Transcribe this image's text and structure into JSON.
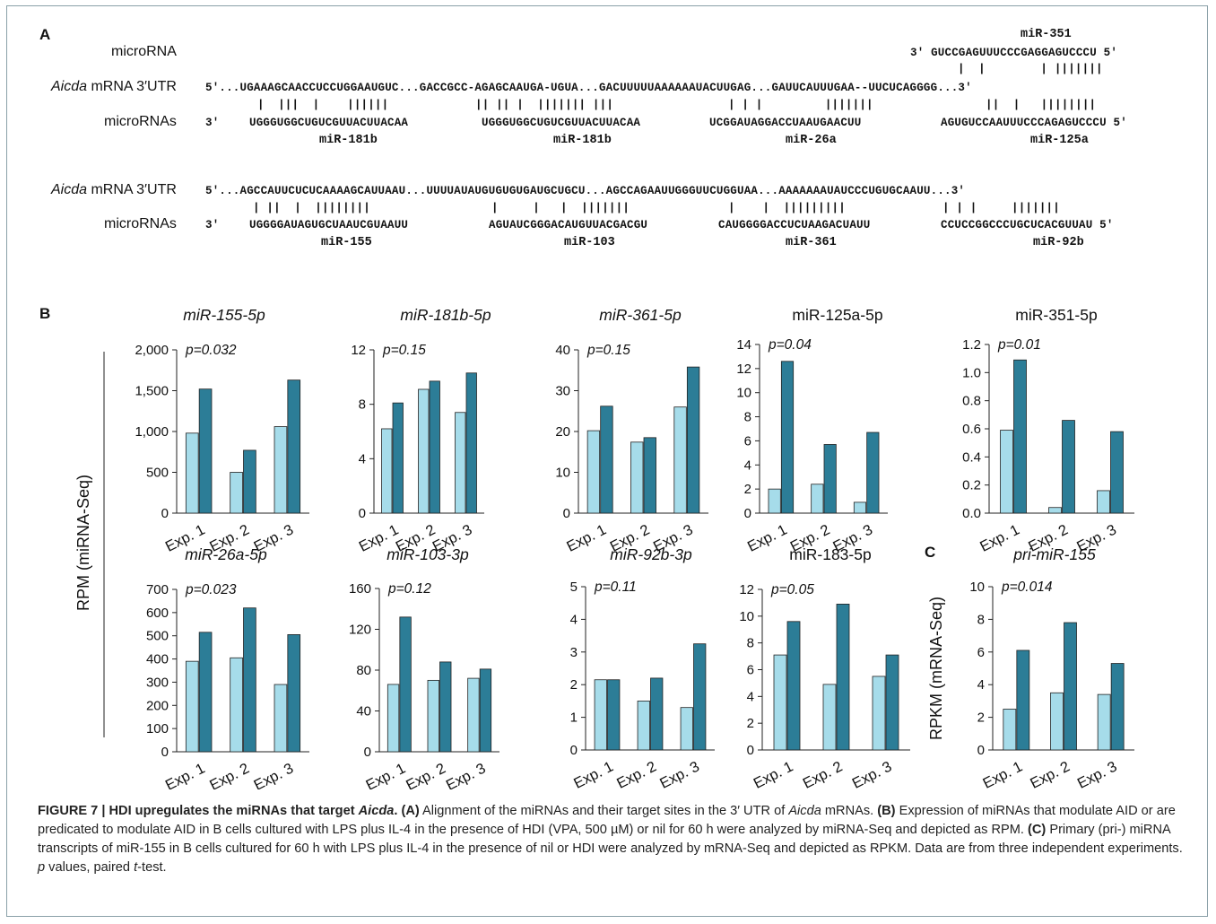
{
  "panelA": {
    "letter": "A",
    "label_microRNA": "microRNA",
    "label_target_gene": "Aicda",
    "label_target_rest": " mRNA 3′UTR",
    "label_microRNAs": "microRNAs",
    "mir351": {
      "name": "miR-351",
      "seq": "3′ GUCCGAGUUUCCCGAGGAGUCCCU 5′",
      "pairs": "|  |        | |||||||"
    },
    "row1": {
      "mrna": "5′...UGAAAGCAACCUCCUGGAAUGUC...GACCGCC-AGAGCAAUGA-UGUA...GACUUUUUAAAAAAUACUUGAG...GAUUCAUUUGAA--UUCUCAGGGG...3′",
      "pairs": [
        {
          "x": 287,
          "text": "|  |||  |    ||||||"
        },
        {
          "x": 530,
          "text": "|| || |  ||||||| |||"
        },
        {
          "x": 812,
          "text": "| | |         |||||||"
        },
        {
          "x": 1099,
          "text": "||  |   ||||||||"
        }
      ],
      "seqs": [
        {
          "x": 229,
          "text": "3′"
        },
        {
          "x": 278,
          "text": "UGGGUGGCUGUCGUUACUUACAA"
        },
        {
          "x": 537,
          "text": "UGGGUGGCUGUCGUUACUUACAA"
        },
        {
          "x": 791,
          "text": "UCGGAUAGGACCUAAUGAACUU"
        },
        {
          "x": 1049,
          "text": "AGUGUCCAAUUUCCCAGAGUCCCU 5′"
        }
      ],
      "names": [
        {
          "x": 356,
          "text": "miR-181b"
        },
        {
          "x": 617,
          "text": "miR-181b"
        },
        {
          "x": 876,
          "text": "miR-26a"
        },
        {
          "x": 1149,
          "text": "miR-125a"
        }
      ]
    },
    "row2": {
      "mrna": "5′...AGCCAUUCUCUCAAAAGCAUUAAU...UUUUAUAUGUGUGUGAUGCUGCU...AGCCAGAAUUGGGUUCUGGUAA...AAAAAAAUAUCCCUGUGCAAUU...3′",
      "pairs": [
        {
          "x": 282,
          "text": "| ||  |  ||||||||"
        },
        {
          "x": 548,
          "text": "|     |   |  |||||||"
        },
        {
          "x": 812,
          "text": "|    |  |||||||||"
        },
        {
          "x": 1051,
          "text": "| | |     |||||||"
        }
      ],
      "seqs": [
        {
          "x": 229,
          "text": "3′"
        },
        {
          "x": 278,
          "text": "UGGGGAUAGUGCUAAUCGUAAUU"
        },
        {
          "x": 545,
          "text": "AGUAUCGGGACAUGUUACGACGU"
        },
        {
          "x": 801,
          "text": "CAUGGGGACCUCUAAGACUAUU"
        },
        {
          "x": 1049,
          "text": "CCUCCGGCCCUGCUCACGUUAU 5′"
        }
      ],
      "names": [
        {
          "x": 358,
          "text": "miR-155"
        },
        {
          "x": 629,
          "text": "miR-103"
        },
        {
          "x": 876,
          "text": "miR-361"
        },
        {
          "x": 1152,
          "text": "miR-92b"
        }
      ]
    }
  },
  "panelB": {
    "letter": "B",
    "ylabel": "RPM (miRNA-Seq)"
  },
  "panelC": {
    "letter": "C",
    "ylabel": "RPKM (mRNA-Seq)"
  },
  "colors": {
    "nil": "#a6dcea",
    "hdi": "#2c7d97",
    "axis": "#222222"
  },
  "chart_data": [
    {
      "type": "bar",
      "title": "miR-155-5p",
      "title_italic": true,
      "pvalue": "p=0.032",
      "categories": [
        "Exp. 1",
        "Exp. 2",
        "Exp. 3"
      ],
      "ylim": [
        0,
        2000
      ],
      "yticks": [
        0,
        500,
        1000,
        1500,
        2000
      ],
      "ytick_labels": [
        "0",
        "500",
        "1,000",
        "1,500",
        "2,000"
      ],
      "series": [
        {
          "values": [
            980,
            500,
            1060
          ]
        },
        {
          "values": [
            1520,
            770,
            1630
          ]
        }
      ]
    },
    {
      "type": "bar",
      "title": "miR-181b-5p",
      "title_italic": true,
      "pvalue": "p=0.15",
      "categories": [
        "Exp. 1",
        "Exp. 2",
        "Exp. 3"
      ],
      "ylim": [
        0,
        12
      ],
      "yticks": [
        0,
        4,
        8,
        12
      ],
      "ytick_labels": [
        "0",
        "4",
        "8",
        "12"
      ],
      "series": [
        {
          "values": [
            6.2,
            9.1,
            7.4
          ]
        },
        {
          "values": [
            8.1,
            9.7,
            10.3
          ]
        }
      ]
    },
    {
      "type": "bar",
      "title": "miR-361-5p",
      "title_italic": true,
      "pvalue": "p=0.15",
      "categories": [
        "Exp. 1",
        "Exp. 2",
        "Exp. 3"
      ],
      "ylim": [
        0,
        40
      ],
      "yticks": [
        0,
        10,
        20,
        30,
        40
      ],
      "ytick_labels": [
        "0",
        "10",
        "20",
        "30",
        "40"
      ],
      "series": [
        {
          "values": [
            20.2,
            17.4,
            26.0
          ]
        },
        {
          "values": [
            26.2,
            18.5,
            35.8
          ]
        }
      ]
    },
    {
      "type": "bar",
      "title": "miR-125a-5p",
      "title_italic": false,
      "pvalue": "p=0.04",
      "categories": [
        "Exp. 1",
        "Exp. 2",
        "Exp. 3"
      ],
      "ylim": [
        0,
        14
      ],
      "yticks": [
        0,
        2,
        4,
        6,
        8,
        10,
        12,
        14
      ],
      "ytick_labels": [
        "0",
        "2",
        "4",
        "6",
        "8",
        "10",
        "12",
        "14"
      ],
      "series": [
        {
          "values": [
            2.0,
            2.4,
            0.9
          ]
        },
        {
          "values": [
            12.6,
            5.7,
            6.7
          ]
        }
      ]
    },
    {
      "type": "bar",
      "title": "miR-351-5p",
      "title_italic": false,
      "pvalue": "p=0.01",
      "categories": [
        "Exp. 1",
        "Exp. 2",
        "Exp. 3"
      ],
      "ylim": [
        0,
        1.2
      ],
      "yticks": [
        0,
        0.2,
        0.4,
        0.6,
        0.8,
        1.0,
        1.2
      ],
      "ytick_labels": [
        "0.0",
        "0.2",
        "0.4",
        "0.6",
        "0.8",
        "1.0",
        "1.2"
      ],
      "series": [
        {
          "values": [
            0.59,
            0.04,
            0.16
          ]
        },
        {
          "values": [
            1.09,
            0.66,
            0.58
          ]
        }
      ]
    },
    {
      "type": "bar",
      "title": "miR-26a-5p",
      "title_italic": true,
      "pvalue": "p=0.023",
      "categories": [
        "Exp. 1",
        "Exp. 2",
        "Exp. 3"
      ],
      "ylim": [
        0,
        700
      ],
      "yticks": [
        0,
        100,
        200,
        300,
        400,
        500,
        600,
        700
      ],
      "ytick_labels": [
        "0",
        "100",
        "200",
        "300",
        "400",
        "500",
        "600",
        "700"
      ],
      "series": [
        {
          "values": [
            390,
            405,
            290
          ]
        },
        {
          "values": [
            515,
            620,
            505
          ]
        }
      ]
    },
    {
      "type": "bar",
      "title": "miR-103-3p",
      "title_italic": true,
      "pvalue": "p=0.12",
      "categories": [
        "Exp. 1",
        "Exp. 2",
        "Exp. 3"
      ],
      "ylim": [
        0,
        160
      ],
      "yticks": [
        0,
        40,
        80,
        120,
        160
      ],
      "ytick_labels": [
        "0",
        "40",
        "80",
        "120",
        "160"
      ],
      "series": [
        {
          "values": [
            66,
            70,
            72
          ]
        },
        {
          "values": [
            132,
            88,
            81
          ]
        }
      ]
    },
    {
      "type": "bar",
      "title": "miR-92b-3p",
      "title_italic": true,
      "pvalue": "p=0.11",
      "categories": [
        "Exp. 1",
        "Exp. 2",
        "Exp. 3"
      ],
      "ylim": [
        0,
        5
      ],
      "yticks": [
        0,
        1,
        2,
        3,
        4,
        5
      ],
      "ytick_labels": [
        "0",
        "1",
        "2",
        "3",
        "4",
        "5"
      ],
      "series": [
        {
          "values": [
            2.15,
            1.5,
            1.3
          ]
        },
        {
          "values": [
            2.15,
            2.2,
            3.25
          ]
        }
      ]
    },
    {
      "type": "bar",
      "title": "miR-183-5p",
      "title_italic": false,
      "pvalue": "p=0.05",
      "categories": [
        "Exp. 1",
        "Exp. 2",
        "Exp. 3"
      ],
      "ylim": [
        0,
        12
      ],
      "yticks": [
        0,
        2,
        4,
        6,
        8,
        10,
        12
      ],
      "ytick_labels": [
        "0",
        "2",
        "4",
        "6",
        "8",
        "10",
        "12"
      ],
      "series": [
        {
          "values": [
            7.1,
            4.9,
            5.5
          ]
        },
        {
          "values": [
            9.6,
            10.9,
            7.1
          ]
        }
      ]
    },
    {
      "type": "bar",
      "title": "pri-miR-155",
      "title_italic": true,
      "pvalue": "p=0.014",
      "categories": [
        "Exp. 1",
        "Exp. 2",
        "Exp. 3"
      ],
      "ylim": [
        0,
        10
      ],
      "yticks": [
        0,
        2,
        4,
        6,
        8,
        10
      ],
      "ytick_labels": [
        "0",
        "2",
        "4",
        "6",
        "8",
        "10"
      ],
      "series": [
        {
          "values": [
            2.5,
            3.5,
            3.4
          ]
        },
        {
          "values": [
            6.1,
            7.8,
            5.3
          ]
        }
      ]
    }
  ],
  "caption": {
    "fig": "FIGURE 7 | HDI upregulates the miRNAs that target ",
    "fig_gene": "Aicda",
    "fig_end": ". ",
    "a_tag": "(A)",
    "a_text": " Alignment of the miRNAs and their target sites in the 3′ UTR of ",
    "a_gene": "Aicda",
    "a_end": " mRNAs. ",
    "b_tag": "(B)",
    "b_text": " Expression of miRNAs that modulate AID or are predicated to modulate AID in B cells cultured with LPS plus IL-4 in the presence of HDI (VPA, 500 µM) or nil for 60 h were analyzed by miRNA-Seq and depicted as RPM. ",
    "c_tag": "(C)",
    "c_text": " Primary (pri-) miRNA transcripts of miR-155 in B cells cultured for 60 h with LPS plus IL-4 in the presence of nil or HDI were analyzed by mRNA-Seq and depicted as RPKM. Data are from three independent experiments. ",
    "p_letter": "p",
    "p_text": " values, paired ",
    "t_letter": "t",
    "t_end": "-test."
  }
}
